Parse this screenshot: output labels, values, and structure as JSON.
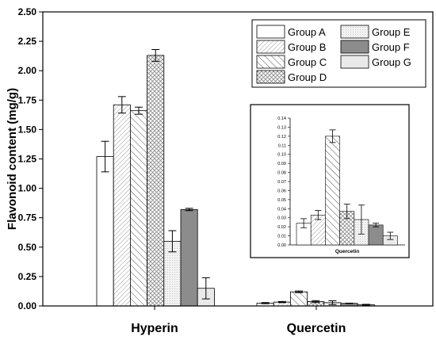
{
  "chart_data": [
    {
      "type": "bar",
      "ylabel": "Flavonoid content (mg/g)",
      "ylim": [
        0,
        2.5
      ],
      "yticks": [
        "0.00",
        "0.25",
        "0.50",
        "0.75",
        "1.00",
        "1.25",
        "1.50",
        "1.75",
        "2.00",
        "2.25",
        "2.50"
      ],
      "categories": [
        "Hyperin",
        "Quercetin"
      ],
      "series": [
        {
          "name": "Group A",
          "values": [
            1.27,
            0.024
          ],
          "errors": [
            0.13,
            0.005
          ]
        },
        {
          "name": "Group B",
          "values": [
            1.71,
            0.033
          ],
          "errors": [
            0.07,
            0.005
          ]
        },
        {
          "name": "Group C",
          "values": [
            1.66,
            0.12
          ],
          "errors": [
            0.03,
            0.007
          ]
        },
        {
          "name": "Group D",
          "values": [
            2.13,
            0.037
          ],
          "errors": [
            0.05,
            0.008
          ]
        },
        {
          "name": "Group E",
          "values": [
            0.55,
            0.028
          ],
          "errors": [
            0.09,
            0.016
          ]
        },
        {
          "name": "Group F",
          "values": [
            0.82,
            0.022
          ],
          "errors": [
            0.01,
            0.002
          ]
        },
        {
          "name": "Group G",
          "values": [
            0.15,
            0.01
          ],
          "errors": [
            0.09,
            0.004
          ]
        }
      ],
      "legend": {
        "placement": "top-right"
      }
    },
    {
      "type": "bar",
      "inset": true,
      "xlabel": "Quercetin",
      "ylim": [
        0,
        0.14
      ],
      "yticks": [
        "0.00",
        "0.01",
        "0.02",
        "0.03",
        "0.04",
        "0.05",
        "0.06",
        "0.07",
        "0.08",
        "0.09",
        "0.10",
        "0.11",
        "0.12",
        "0.13",
        "0.14"
      ],
      "series_values": [
        0.024,
        0.033,
        0.12,
        0.037,
        0.028,
        0.022,
        0.01
      ],
      "series_errors": [
        0.005,
        0.005,
        0.007,
        0.008,
        0.016,
        0.002,
        0.004
      ]
    }
  ],
  "patterns": {
    "Group A": "white",
    "Group B": "hatch-dense",
    "Group C": "hatch-diagonal",
    "Group D": "crosshatch",
    "Group E": "light-dots",
    "Group F": "dark-gray",
    "Group G": "light-gray"
  }
}
